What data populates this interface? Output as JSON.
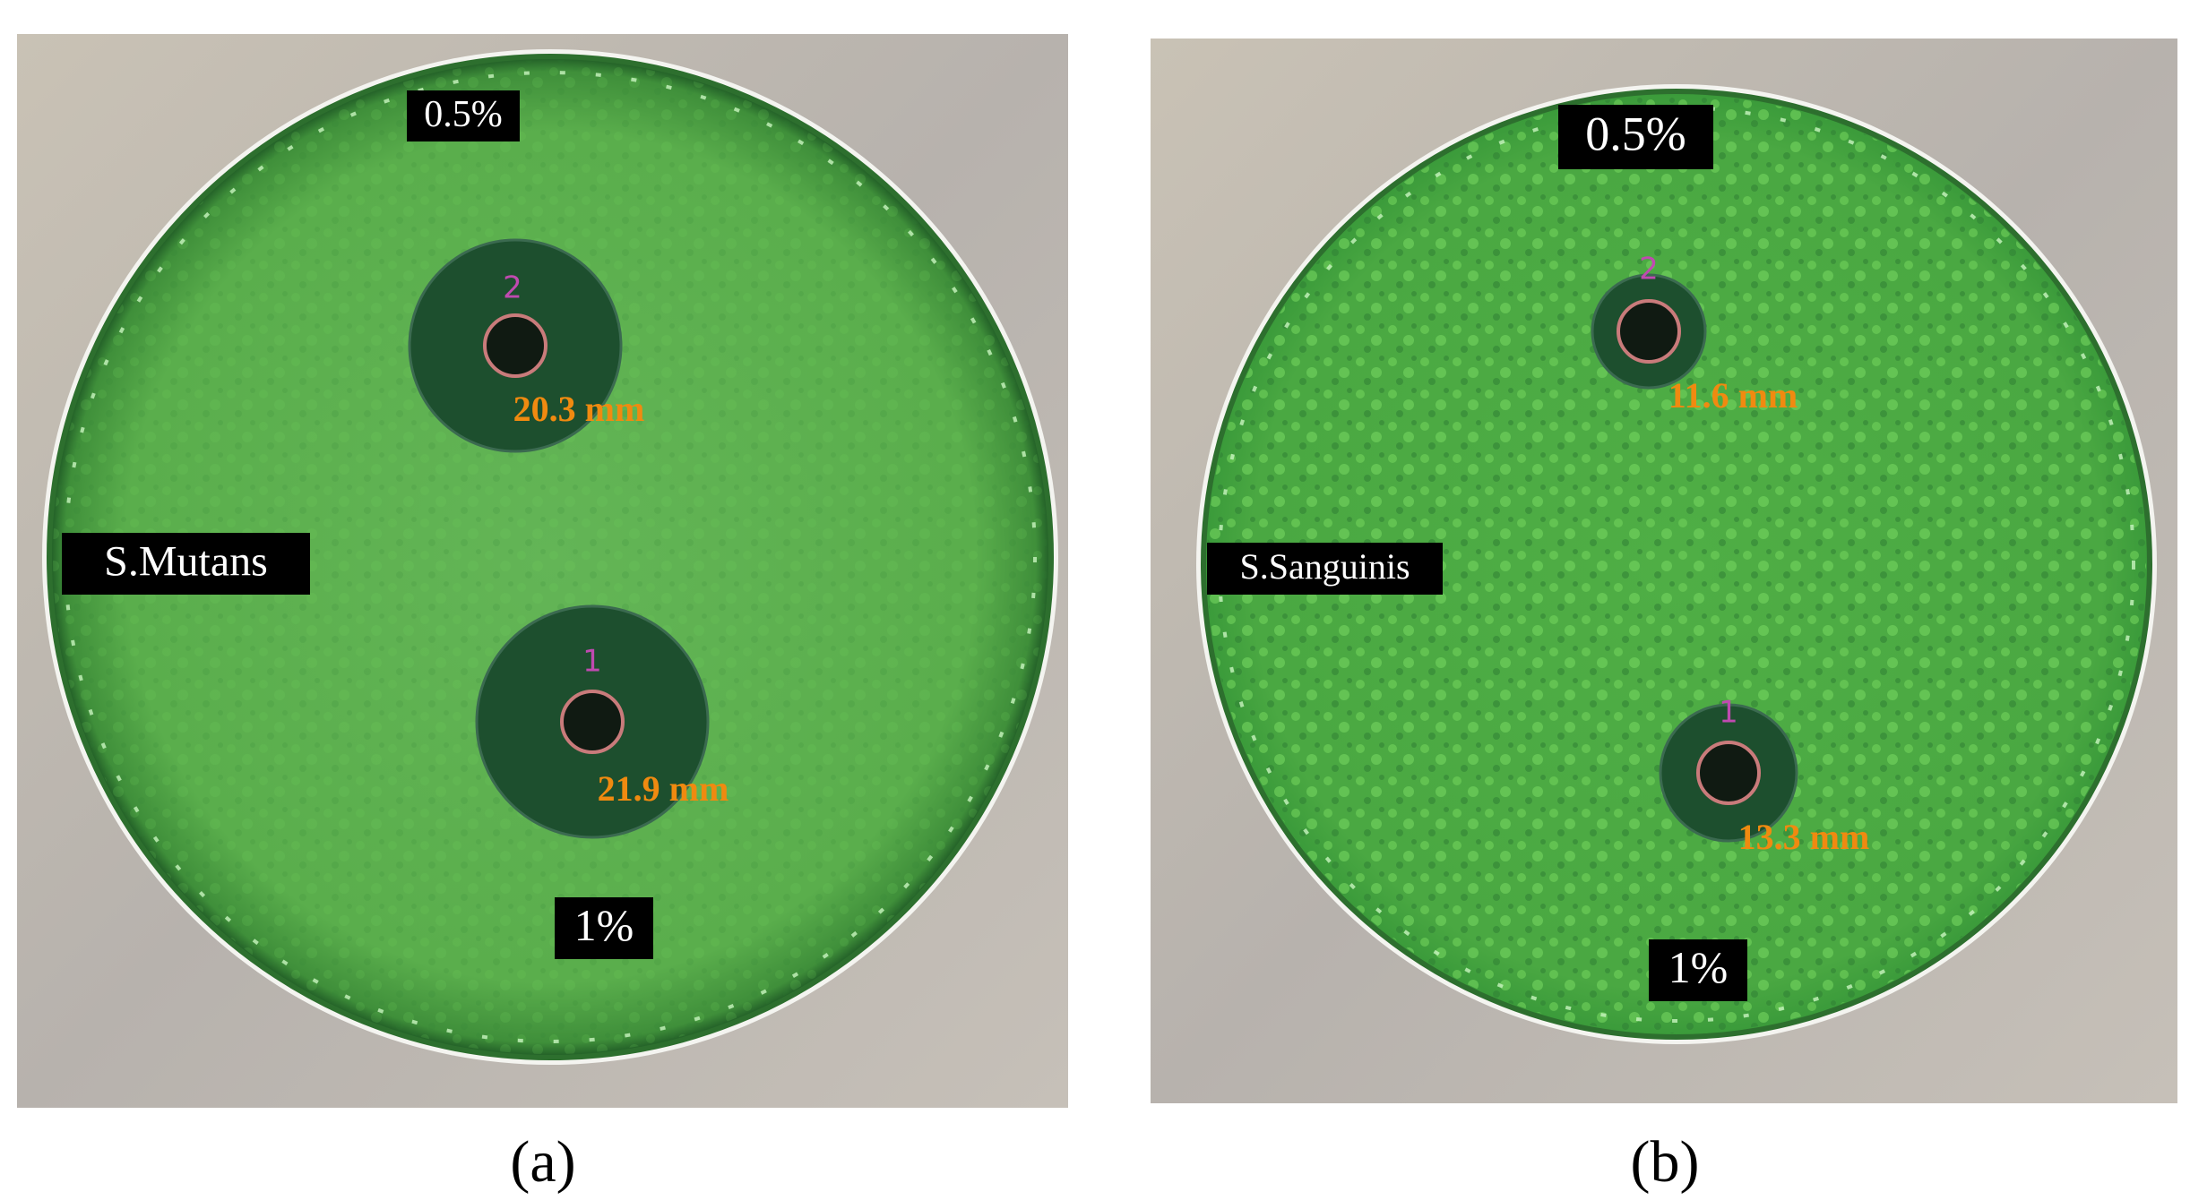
{
  "panels": [
    {
      "caption": "(a)",
      "strain": "S.Mutans",
      "top_label": "0.5%",
      "bottom_label": "1%",
      "wells": [
        {
          "number": "2",
          "measurement": "20.3 mm"
        },
        {
          "number": "1",
          "measurement": "21.9 mm"
        }
      ]
    },
    {
      "caption": "(b)",
      "strain": "S.Sanguinis",
      "top_label": "0.5%",
      "bottom_label": "1%",
      "wells": [
        {
          "number": "2",
          "measurement": "11.6 mm"
        },
        {
          "number": "1",
          "measurement": "13.3 mm"
        }
      ]
    }
  ]
}
